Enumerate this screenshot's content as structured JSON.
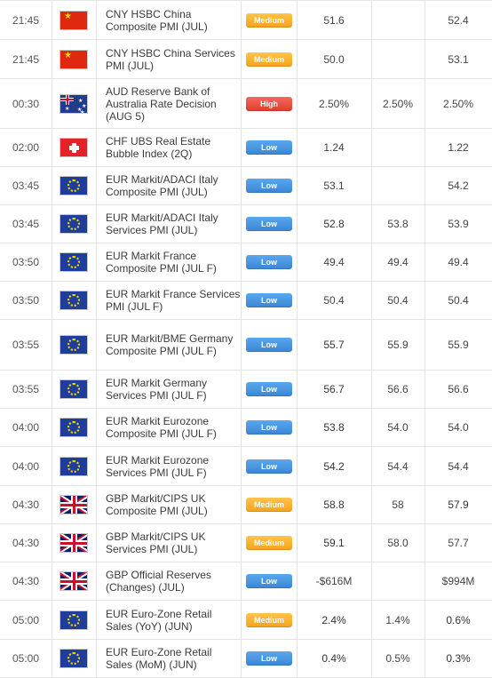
{
  "colors": {
    "low": "#3a86d6",
    "medium": "#f5a21c",
    "high": "#de3d2e",
    "negative": "#cc2222",
    "positive": "#3a8a1a"
  },
  "rows": [
    {
      "time": "21:45",
      "flag": "cn-flag-icon",
      "event": "CNY HSBC China Composite PMI (JUL)",
      "importance": "Medium",
      "actual": "51.6",
      "actual_tone": "neutral",
      "forecast": "",
      "previous": "52.4",
      "previous_tone": "neutral"
    },
    {
      "time": "21:45",
      "flag": "cn-flag-icon",
      "event": "CNY HSBC China Services PMI (JUL)",
      "importance": "Medium",
      "actual": "50.0",
      "actual_tone": "neutral",
      "forecast": "",
      "previous": "53.1",
      "previous_tone": "neutral"
    },
    {
      "time": "00:30",
      "flag": "au-flag-icon",
      "event": "AUD Reserve Bank of Australia Rate Decision (AUG 5)",
      "importance": "High",
      "actual": "2.50%",
      "actual_tone": "neutral",
      "forecast": "2.50%",
      "previous": "2.50%",
      "previous_tone": "neutral"
    },
    {
      "time": "02:00",
      "flag": "ch-flag-icon",
      "event": "CHF UBS Real Estate Bubble Index (2Q)",
      "importance": "Low",
      "actual": "1.24",
      "actual_tone": "neutral",
      "forecast": "",
      "previous": "1.22",
      "previous_tone": "neutral"
    },
    {
      "time": "03:45",
      "flag": "eu-flag-icon",
      "event": "EUR Markit/ADACI Italy Composite PMI (JUL)",
      "importance": "Low",
      "actual": "53.1",
      "actual_tone": "neutral",
      "forecast": "",
      "previous": "54.2",
      "previous_tone": "neutral"
    },
    {
      "time": "03:45",
      "flag": "eu-flag-icon",
      "event": "EUR Markit/ADACI Italy Services PMI (JUL)",
      "importance": "Low",
      "actual": "52.8",
      "actual_tone": "negative",
      "forecast": "53.8",
      "previous": "53.9",
      "previous_tone": "neutral"
    },
    {
      "time": "03:50",
      "flag": "eu-flag-icon",
      "event": "EUR Markit France Composite PMI (JUL F)",
      "importance": "Low",
      "actual": "49.4",
      "actual_tone": "neutral",
      "forecast": "49.4",
      "previous": "49.4",
      "previous_tone": "neutral"
    },
    {
      "time": "03:50",
      "flag": "eu-flag-icon",
      "event": "EUR Markit France Services PMI (JUL F)",
      "importance": "Low",
      "actual": "50.4",
      "actual_tone": "neutral",
      "forecast": "50.4",
      "previous": "50.4",
      "previous_tone": "neutral"
    },
    {
      "time": "03:55",
      "flag": "eu-flag-icon",
      "event": "EUR Markit/BME Germany Composite PMI (JUL F)",
      "importance": "Low",
      "actual": "55.7",
      "actual_tone": "negative",
      "forecast": "55.9",
      "previous": "55.9",
      "previous_tone": "neutral"
    },
    {
      "time": "03:55",
      "flag": "eu-flag-icon",
      "event": "EUR Markit Germany Services PMI (JUL F)",
      "importance": "Low",
      "actual": "56.7",
      "actual_tone": "positive",
      "forecast": "56.6",
      "previous": "56.6",
      "previous_tone": "neutral"
    },
    {
      "time": "04:00",
      "flag": "eu-flag-icon",
      "event": "EUR Markit Eurozone Composite PMI (JUL F)",
      "importance": "Low",
      "actual": "53.8",
      "actual_tone": "negative",
      "forecast": "54.0",
      "previous": "54.0",
      "previous_tone": "neutral"
    },
    {
      "time": "04:00",
      "flag": "eu-flag-icon",
      "event": "EUR Markit Eurozone Services PMI (JUL F)",
      "importance": "Low",
      "actual": "54.2",
      "actual_tone": "negative",
      "forecast": "54.4",
      "previous": "54.4",
      "previous_tone": "neutral"
    },
    {
      "time": "04:30",
      "flag": "gb-flag-icon",
      "event": "GBP Markit/CIPS UK Composite PMI (JUL)",
      "importance": "Medium",
      "actual": "58.8",
      "actual_tone": "positive",
      "forecast": "58",
      "previous": "57.9",
      "previous_tone": "negative"
    },
    {
      "time": "04:30",
      "flag": "gb-flag-icon",
      "event": "GBP Markit/CIPS UK Services PMI (JUL)",
      "importance": "Medium",
      "actual": "59.1",
      "actual_tone": "positive",
      "forecast": "58.0",
      "previous": "57.7",
      "previous_tone": "neutral"
    },
    {
      "time": "04:30",
      "flag": "gb-flag-icon",
      "event": "GBP Official Reserves (Changes) (JUL)",
      "importance": "Low",
      "actual": "-$616M",
      "actual_tone": "neutral",
      "forecast": "",
      "previous": "$994M",
      "previous_tone": "neutral"
    },
    {
      "time": "05:00",
      "flag": "eu-flag-icon",
      "event": "EUR Euro-Zone Retail Sales (YoY) (JUN)",
      "importance": "Medium",
      "actual": "2.4%",
      "actual_tone": "positive",
      "forecast": "1.4%",
      "previous": "0.6%",
      "previous_tone": "negative"
    },
    {
      "time": "05:00",
      "flag": "eu-flag-icon",
      "event": "EUR Euro-Zone Retail Sales (MoM) (JUN)",
      "importance": "Low",
      "actual": "0.4%",
      "actual_tone": "negative",
      "forecast": "0.5%",
      "previous": "0.3%",
      "previous_tone": "positive"
    }
  ]
}
